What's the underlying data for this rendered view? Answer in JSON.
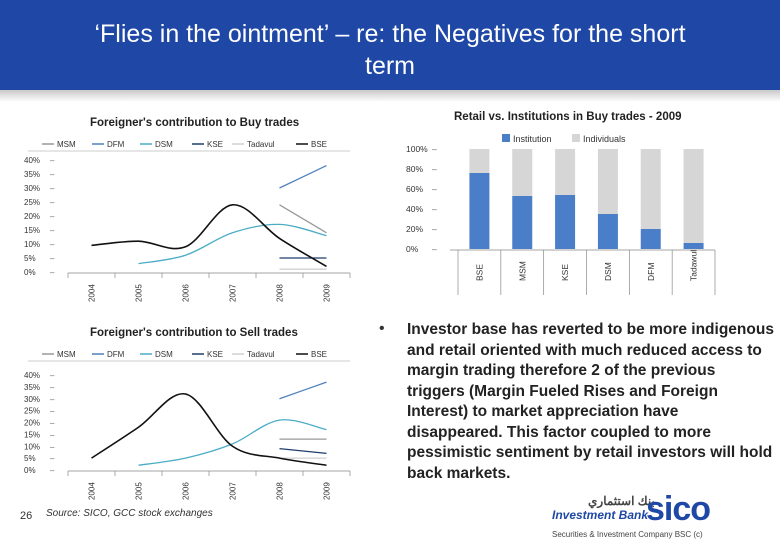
{
  "header": {
    "title_line1": "‘Flies in the ointment’ – re: the Negatives for  the short",
    "title_line2": "term",
    "background": "#1f47a6"
  },
  "chart_data": [
    {
      "type": "line",
      "title": "Foreigner's contribution to Buy trades",
      "categories": [
        "2004",
        "2005",
        "2006",
        "2007",
        "2008",
        "2009"
      ],
      "y_ticks": [
        "0%",
        "5%",
        "10%",
        "15%",
        "20%",
        "25%",
        "30%",
        "35%",
        "40%"
      ],
      "ylim": [
        0,
        40
      ],
      "series": [
        {
          "name": "MSM",
          "color": "#999999",
          "values": [
            null,
            null,
            null,
            null,
            24,
            14
          ]
        },
        {
          "name": "DFM",
          "color": "#4f81bd",
          "values": [
            null,
            null,
            null,
            null,
            30,
            38
          ]
        },
        {
          "name": "DSM",
          "color": "#4bacc6",
          "values": [
            null,
            3,
            6,
            14,
            17,
            13
          ]
        },
        {
          "name": "KSE",
          "color": "#1f3d6b",
          "values": [
            null,
            null,
            null,
            null,
            5,
            5
          ]
        },
        {
          "name": "Tadavul",
          "color": "#d0d0d0",
          "values": [
            null,
            null,
            null,
            null,
            1,
            1
          ]
        },
        {
          "name": "BSE",
          "color": "#111111",
          "values": [
            9.5,
            11,
            9,
            24,
            12,
            2
          ]
        }
      ]
    },
    {
      "type": "line",
      "title": "Foreigner's contribution to Sell trades",
      "categories": [
        "2004",
        "2005",
        "2006",
        "2007",
        "2008",
        "2009"
      ],
      "y_ticks": [
        "0%",
        "5%",
        "10%",
        "15%",
        "20%",
        "25%",
        "30%",
        "35%",
        "40%"
      ],
      "ylim": [
        0,
        40
      ],
      "series": [
        {
          "name": "MSM",
          "color": "#999999",
          "values": [
            null,
            null,
            null,
            null,
            13,
            13
          ]
        },
        {
          "name": "DFM",
          "color": "#4f81bd",
          "values": [
            null,
            null,
            null,
            null,
            30,
            37
          ]
        },
        {
          "name": "DSM",
          "color": "#4bacc6",
          "values": [
            null,
            2,
            5,
            11,
            21,
            17
          ]
        },
        {
          "name": "KSE",
          "color": "#1f3d6b",
          "values": [
            null,
            null,
            null,
            null,
            9,
            7
          ]
        },
        {
          "name": "Tadavul",
          "color": "#d0d0d0",
          "values": [
            null,
            null,
            null,
            null,
            5,
            5
          ]
        },
        {
          "name": "BSE",
          "color": "#111111",
          "values": [
            5,
            18,
            32,
            10,
            5,
            2
          ]
        }
      ]
    },
    {
      "type": "bar",
      "stacked": true,
      "title": "Retail vs. Institutions in Buy trades - 2009",
      "categories": [
        "BSE",
        "MSM",
        "KSE",
        "DSM",
        "DFM",
        "Tadawul"
      ],
      "y_ticks": [
        "0%",
        "20%",
        "40%",
        "60%",
        "80%",
        "100%"
      ],
      "ylim": [
        0,
        100
      ],
      "series": [
        {
          "name": "Institution",
          "color": "#4a7ec8",
          "values": [
            76,
            53,
            54,
            35,
            20,
            6
          ]
        },
        {
          "name": "Individuals",
          "color": "#d6d6d6",
          "values": [
            24,
            47,
            46,
            65,
            80,
            94
          ]
        }
      ]
    }
  ],
  "bullet": {
    "symbol": "•",
    "text": "Investor base has reverted to be more indigenous and retail oriented with much reduced access to margin trading therefore  2 of the previous triggers (Margin Fueled Rises and Foreign Interest) to market appreciation have disappeared. This factor coupled to more pessimistic sentiment by retail investors will hold back markets."
  },
  "footer": {
    "page_number": "26",
    "source": "Source: SICO, GCC stock exchanges"
  },
  "logo": {
    "arabic": "بنك استثماري",
    "bank_name": "Investment Bank",
    "brand": "sico",
    "caption": "Securities & Investment Company BSC (c)"
  }
}
